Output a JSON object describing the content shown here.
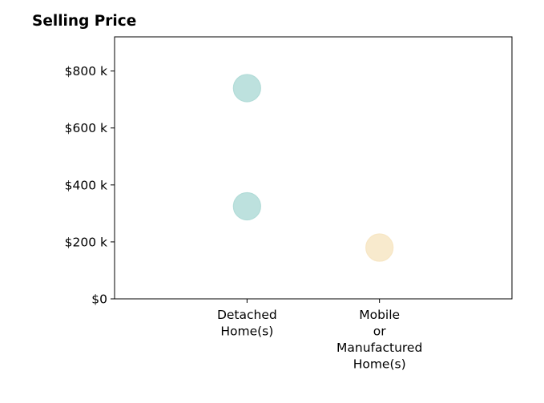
{
  "chart_data": {
    "type": "scatter",
    "title": "Selling Price",
    "xlabel": "",
    "ylabel": "",
    "categories": [
      [
        "Detached",
        "Home(s)"
      ],
      [
        "Mobile",
        "or",
        "Manufactured",
        "Home(s)"
      ]
    ],
    "xlim": [
      -1,
      2
    ],
    "ylim": [
      0,
      920000
    ],
    "yticks": [
      0,
      200000,
      400000,
      600000,
      800000
    ],
    "ytick_labels": [
      "$0",
      "$200 k",
      "$400 k",
      "$600 k",
      "$800 k"
    ],
    "grid": false,
    "points": [
      {
        "category_index": 0,
        "value": 740000,
        "color": "#b2dcd8"
      },
      {
        "category_index": 0,
        "value": 325000,
        "color": "#b2dcd8"
      },
      {
        "category_index": 1,
        "value": 180000,
        "color": "#f7e6c4"
      }
    ]
  }
}
